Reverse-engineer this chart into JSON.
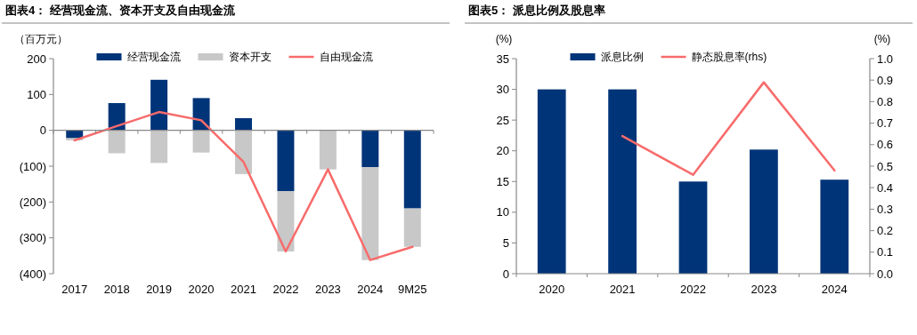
{
  "chart_data": [
    {
      "type": "bar",
      "title": "图表4：  经营现金流、资本开支及自由现金流",
      "ylabel": "（百万元）",
      "categories": [
        "2017",
        "2018",
        "2019",
        "2020",
        "2021",
        "2022",
        "2023",
        "2024",
        "9M25"
      ],
      "stacked": true,
      "legend": "top",
      "ylim": [
        -400,
        200
      ],
      "yticks": [
        {
          "value": -400,
          "label": "(400)"
        },
        {
          "value": -300,
          "label": "(300)"
        },
        {
          "value": -200,
          "label": "(200)"
        },
        {
          "value": -100,
          "label": "(100)"
        },
        0,
        100,
        200
      ],
      "series": [
        {
          "name": "经营现金流",
          "color": "#003478",
          "values": [
            -22,
            76,
            141,
            90,
            34,
            -170,
            0,
            -103,
            -218
          ]
        },
        {
          "name": "资本开支",
          "color": "#c8c8c8",
          "values": [
            -6,
            -64,
            -91,
            -62,
            -122,
            -168,
            -109,
            -259,
            -107
          ]
        },
        {
          "name": "自由现金流",
          "type": "line",
          "color": "#f86b6b",
          "values": [
            -28,
            12,
            51,
            28,
            -88,
            -338,
            -109,
            -362,
            -325
          ]
        }
      ]
    },
    {
      "type": "bar",
      "title": "图表5：  派息比例及股息率",
      "ylabel": "(%)",
      "y2label": "(%)",
      "categories": [
        "2020",
        "2021",
        "2022",
        "2023",
        "2024"
      ],
      "legend": "top",
      "ylim": [
        0,
        35
      ],
      "yticks": [
        0,
        5,
        10,
        15,
        20,
        25,
        30,
        35
      ],
      "y2lim": [
        0,
        1
      ],
      "y2ticks": [
        {
          "value": 0,
          "label": "0.0"
        },
        0.1,
        0.2,
        0.3,
        0.4,
        0.5,
        0.6,
        0.7,
        0.8,
        0.9,
        {
          "value": 1,
          "label": "1.0"
        }
      ],
      "series": [
        {
          "name": "派息比例",
          "color": "#003478",
          "values": [
            30,
            30,
            15,
            20.2,
            15.3
          ]
        },
        {
          "name": "静态股息率(rhs)",
          "type": "line",
          "axis": "y2",
          "color": "#f86b6b",
          "values": [
            null,
            0.64,
            0.46,
            0.89,
            0.48
          ]
        }
      ]
    }
  ]
}
